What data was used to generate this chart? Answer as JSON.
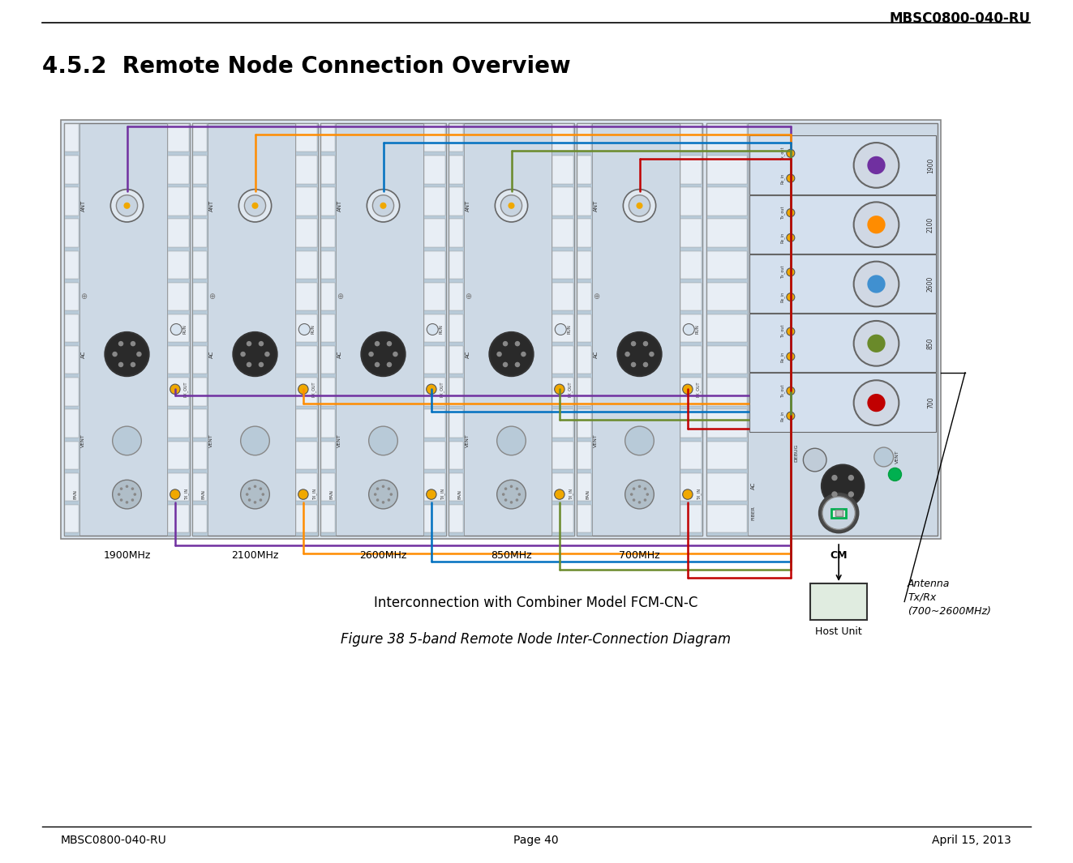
{
  "header_text": "MBSC0800-040-RU",
  "section_title": "4.5.2  Remote Node Connection Overview",
  "footer_left": "MBSC0800-040-RU",
  "footer_center": "Page 40",
  "footer_right": "April 15, 2013",
  "caption1": "Interconnection with Combiner Model FCM-CN-C",
  "caption2": "Figure 38 5-band Remote Node Inter-Connection Diagram",
  "bg_color": "#ffffff",
  "panel_labels": [
    "1900MHz",
    "2100MHz",
    "2600MHz",
    "850MHz",
    "700MHz"
  ],
  "cm_label": "CM",
  "host_unit_label": "Host Unit",
  "antenna_label": "Antenna\nTx/Rx\n(700~2600MHz)",
  "wire_colors": [
    "#7030a0",
    "#ff8c00",
    "#0070c0",
    "#6a8a2a",
    "#c00000"
  ],
  "freq_colors": {
    "1900": "#7030a0",
    "2100": "#ff8c00",
    "2600": "#0070c0",
    "850": "#6a8a2a",
    "700": "#c00000"
  }
}
